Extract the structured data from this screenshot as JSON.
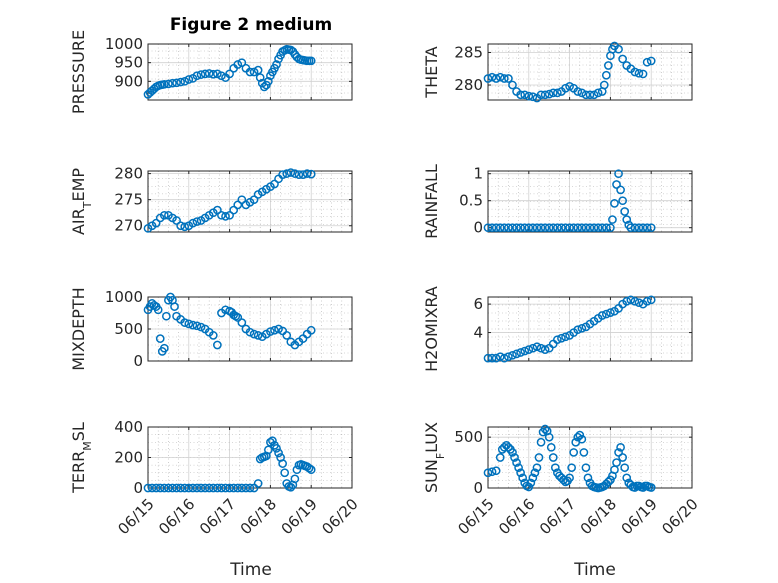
{
  "figure": {
    "title": "Figure 2 medium",
    "xlabel": "Time",
    "marker_color": "#0072BD"
  },
  "chart_data": [
    {
      "type": "scatter",
      "ylabel": "PRESSURE",
      "xlim": [
        "06/15",
        "06/19"
      ],
      "ylim": [
        850,
        1000
      ],
      "yticks": [
        900,
        950,
        1000
      ],
      "xtick_labels": [
        "06/15",
        "06/16",
        "06/17",
        "06/18",
        "06/19",
        "06/20"
      ],
      "grid": true,
      "legend": "none",
      "x": [
        0.0,
        0.05,
        0.1,
        0.15,
        0.2,
        0.25,
        0.3,
        0.35,
        0.4,
        0.5,
        0.6,
        0.7,
        0.8,
        0.9,
        1.0,
        1.1,
        1.2,
        1.3,
        1.4,
        1.5,
        1.6,
        1.7,
        1.8,
        1.9,
        2.0,
        2.1,
        2.2,
        2.3,
        2.4,
        2.5,
        2.6,
        2.7,
        2.75,
        2.8,
        2.85,
        2.9,
        2.95,
        3.0,
        3.05,
        3.1,
        3.15,
        3.2,
        3.25,
        3.3,
        3.35,
        3.4,
        3.45,
        3.5,
        3.55,
        3.6,
        3.65,
        3.7,
        3.75,
        3.8,
        3.85,
        3.9,
        3.95,
        4.0
      ],
      "y": [
        865,
        870,
        875,
        880,
        885,
        888,
        890,
        891,
        892,
        893,
        895,
        896,
        898,
        900,
        905,
        908,
        915,
        918,
        920,
        921,
        919,
        920,
        915,
        910,
        920,
        935,
        945,
        950,
        935,
        925,
        925,
        930,
        910,
        895,
        885,
        890,
        900,
        915,
        925,
        935,
        945,
        960,
        970,
        980,
        983,
        986,
        985,
        984,
        980,
        972,
        965,
        960,
        958,
        957,
        956,
        955,
        955,
        955
      ]
    },
    {
      "type": "scatter",
      "ylabel": "THETA",
      "xlim": [
        "06/15",
        "06/19"
      ],
      "ylim": [
        277.7,
        286.3
      ],
      "yticks": [
        280,
        285
      ],
      "xtick_labels": [
        "06/15",
        "06/16",
        "06/17",
        "06/18",
        "06/19",
        "06/20"
      ],
      "grid": true,
      "legend": "none",
      "x": [
        0.0,
        0.1,
        0.2,
        0.3,
        0.4,
        0.5,
        0.6,
        0.7,
        0.8,
        0.9,
        1.0,
        1.1,
        1.2,
        1.3,
        1.4,
        1.5,
        1.6,
        1.7,
        1.8,
        1.9,
        2.0,
        2.1,
        2.2,
        2.3,
        2.4,
        2.5,
        2.6,
        2.7,
        2.8,
        2.85,
        2.9,
        2.95,
        3.0,
        3.05,
        3.1,
        3.2,
        3.3,
        3.4,
        3.5,
        3.6,
        3.7,
        3.8,
        3.9,
        4.0
      ],
      "y": [
        281,
        281.2,
        281,
        281.2,
        281,
        281,
        280,
        279,
        278.5,
        278.5,
        278.3,
        278.2,
        278,
        278.5,
        278.5,
        278.6,
        278.8,
        278.8,
        279,
        279.5,
        279.8,
        279.5,
        279,
        278.8,
        278.5,
        278.5,
        278.5,
        278.8,
        279,
        280,
        281.5,
        283,
        284.5,
        285.5,
        286,
        285.5,
        284,
        283,
        282.5,
        282,
        281.8,
        281.7,
        283.5,
        283.7
      ]
    },
    {
      "type": "scatter",
      "ylabel": "AIR_TEMP",
      "xlim": [
        "06/15",
        "06/19"
      ],
      "ylim": [
        268.8,
        280.5
      ],
      "yticks": [
        270,
        275,
        280
      ],
      "xtick_labels": [
        "06/15",
        "06/16",
        "06/17",
        "06/18",
        "06/19",
        "06/20"
      ],
      "grid": true,
      "legend": "none",
      "x": [
        0.0,
        0.1,
        0.2,
        0.3,
        0.4,
        0.5,
        0.6,
        0.7,
        0.8,
        0.9,
        1.0,
        1.1,
        1.2,
        1.3,
        1.4,
        1.5,
        1.6,
        1.7,
        1.8,
        1.9,
        2.0,
        2.1,
        2.2,
        2.3,
        2.4,
        2.5,
        2.6,
        2.7,
        2.8,
        2.9,
        3.0,
        3.1,
        3.2,
        3.3,
        3.4,
        3.5,
        3.6,
        3.7,
        3.8,
        3.9,
        4.0
      ],
      "y": [
        269.5,
        270,
        270.5,
        271.5,
        272,
        272,
        271.5,
        271,
        270,
        269.8,
        270,
        270.5,
        270.8,
        271,
        271.5,
        272,
        272.5,
        273,
        272,
        271.8,
        272,
        273,
        274,
        275,
        274,
        274.5,
        275,
        276,
        276.5,
        277,
        277.5,
        278,
        279,
        279.8,
        280,
        280.2,
        280,
        279.8,
        279.8,
        280,
        279.9
      ]
    },
    {
      "type": "scatter",
      "ylabel": "RAINFALL",
      "xlim": [
        "06/15",
        "06/19"
      ],
      "ylim": [
        -0.08,
        1.05
      ],
      "yticks": [
        0,
        0.5,
        1
      ],
      "xtick_labels": [
        "06/15",
        "06/16",
        "06/17",
        "06/18",
        "06/19",
        "06/20"
      ],
      "grid": true,
      "legend": "none",
      "x": [
        0.0,
        0.1,
        0.2,
        0.3,
        0.4,
        0.5,
        0.6,
        0.7,
        0.8,
        0.9,
        1.0,
        1.1,
        1.2,
        1.3,
        1.4,
        1.5,
        1.6,
        1.7,
        1.8,
        1.9,
        2.0,
        2.1,
        2.2,
        2.3,
        2.4,
        2.5,
        2.6,
        2.7,
        2.8,
        2.9,
        3.0,
        3.05,
        3.1,
        3.15,
        3.2,
        3.25,
        3.3,
        3.35,
        3.4,
        3.45,
        3.5,
        3.6,
        3.7,
        3.8,
        3.9,
        4.0
      ],
      "y": [
        0,
        0,
        0,
        0,
        0,
        0,
        0,
        0,
        0,
        0,
        0,
        0,
        0,
        0,
        0,
        0,
        0,
        0,
        0,
        0,
        0,
        0,
        0,
        0,
        0,
        0,
        0,
        0,
        0,
        0,
        0,
        0.15,
        0.45,
        0.8,
        1.0,
        0.7,
        0.5,
        0.3,
        0.15,
        0.05,
        0,
        0,
        0,
        0,
        0,
        0
      ]
    },
    {
      "type": "scatter",
      "ylabel": "MIXDEPTH",
      "xlim": [
        "06/15",
        "06/19"
      ],
      "ylim": [
        0,
        1000
      ],
      "yticks": [
        0,
        500,
        1000
      ],
      "xtick_labels": [
        "06/15",
        "06/16",
        "06/17",
        "06/18",
        "06/19",
        "06/20"
      ],
      "grid": true,
      "legend": "none",
      "x": [
        0.0,
        0.05,
        0.1,
        0.15,
        0.2,
        0.25,
        0.3,
        0.35,
        0.4,
        0.45,
        0.5,
        0.55,
        0.6,
        0.65,
        0.7,
        0.8,
        0.9,
        1.0,
        1.1,
        1.2,
        1.3,
        1.4,
        1.5,
        1.6,
        1.7,
        1.8,
        1.9,
        2.0,
        2.05,
        2.1,
        2.15,
        2.2,
        2.3,
        2.4,
        2.5,
        2.6,
        2.7,
        2.8,
        2.9,
        3.0,
        3.1,
        3.2,
        3.3,
        3.4,
        3.5,
        3.6,
        3.7,
        3.8,
        3.9,
        4.0
      ],
      "y": [
        800,
        850,
        900,
        870,
        850,
        800,
        350,
        150,
        200,
        700,
        950,
        1000,
        950,
        850,
        700,
        650,
        600,
        580,
        560,
        550,
        530,
        500,
        450,
        400,
        250,
        750,
        800,
        780,
        760,
        720,
        700,
        680,
        600,
        500,
        450,
        420,
        400,
        380,
        420,
        460,
        480,
        500,
        470,
        400,
        300,
        250,
        300,
        350,
        420,
        480
      ]
    },
    {
      "type": "scatter",
      "ylabel": "H2OMIXRA",
      "xlim": [
        "06/15",
        "06/19"
      ],
      "ylim": [
        2,
        6.5
      ],
      "yticks": [
        4,
        6
      ],
      "xtick_labels": [
        "06/15",
        "06/16",
        "06/17",
        "06/18",
        "06/19",
        "06/20"
      ],
      "grid": true,
      "legend": "none",
      "x": [
        0.0,
        0.1,
        0.2,
        0.3,
        0.4,
        0.5,
        0.6,
        0.7,
        0.8,
        0.9,
        1.0,
        1.1,
        1.2,
        1.3,
        1.4,
        1.5,
        1.6,
        1.7,
        1.8,
        1.9,
        2.0,
        2.1,
        2.2,
        2.3,
        2.4,
        2.5,
        2.6,
        2.7,
        2.8,
        2.9,
        3.0,
        3.1,
        3.2,
        3.3,
        3.4,
        3.5,
        3.6,
        3.7,
        3.8,
        3.9,
        4.0
      ],
      "y": [
        2.2,
        2.2,
        2.2,
        2.3,
        2.2,
        2.3,
        2.4,
        2.5,
        2.6,
        2.7,
        2.8,
        2.9,
        3.0,
        2.9,
        2.8,
        2.9,
        3.2,
        3.5,
        3.6,
        3.7,
        3.8,
        4.0,
        4.2,
        4.3,
        4.4,
        4.6,
        4.8,
        5.0,
        5.2,
        5.3,
        5.4,
        5.5,
        5.7,
        6.0,
        6.2,
        6.3,
        6.2,
        6.1,
        6.0,
        6.2,
        6.3
      ]
    },
    {
      "type": "scatter",
      "ylabel": "TERR_MSL",
      "xlim": [
        "06/15",
        "06/19"
      ],
      "ylim": [
        0,
        400
      ],
      "yticks": [
        0,
        200,
        400
      ],
      "xtick_labels": [
        "06/15",
        "06/16",
        "06/17",
        "06/18",
        "06/19",
        "06/20"
      ],
      "grid": true,
      "legend": "none",
      "x": [
        0.0,
        0.1,
        0.2,
        0.3,
        0.4,
        0.5,
        0.6,
        0.7,
        0.8,
        0.9,
        1.0,
        1.1,
        1.2,
        1.3,
        1.4,
        1.5,
        1.6,
        1.7,
        1.8,
        1.9,
        2.0,
        2.1,
        2.2,
        2.3,
        2.4,
        2.5,
        2.6,
        2.7,
        2.75,
        2.8,
        2.85,
        2.9,
        2.95,
        3.0,
        3.05,
        3.1,
        3.15,
        3.2,
        3.25,
        3.3,
        3.35,
        3.4,
        3.45,
        3.5,
        3.55,
        3.6,
        3.65,
        3.7,
        3.75,
        3.8,
        3.85,
        3.9,
        3.95,
        4.0
      ],
      "y": [
        0,
        0,
        0,
        0,
        0,
        0,
        0,
        0,
        0,
        0,
        0,
        0,
        0,
        0,
        0,
        0,
        0,
        0,
        0,
        0,
        0,
        0,
        0,
        0,
        0,
        0,
        0,
        30,
        190,
        200,
        205,
        210,
        250,
        300,
        310,
        280,
        260,
        230,
        200,
        160,
        100,
        30,
        10,
        5,
        20,
        60,
        120,
        150,
        155,
        150,
        145,
        140,
        130,
        120
      ]
    },
    {
      "type": "scatter",
      "ylabel": "SUN_FLUX",
      "xlim": [
        "06/15",
        "06/19"
      ],
      "ylim": [
        0,
        600
      ],
      "yticks": [
        0,
        500
      ],
      "xtick_labels": [
        "06/15",
        "06/16",
        "06/17",
        "06/18",
        "06/19",
        "06/20"
      ],
      "grid": true,
      "legend": "none",
      "x": [
        0.0,
        0.1,
        0.2,
        0.3,
        0.35,
        0.4,
        0.45,
        0.5,
        0.55,
        0.6,
        0.65,
        0.7,
        0.75,
        0.8,
        0.85,
        0.9,
        0.95,
        1.0,
        1.05,
        1.1,
        1.15,
        1.2,
        1.25,
        1.3,
        1.35,
        1.4,
        1.45,
        1.5,
        1.55,
        1.6,
        1.65,
        1.7,
        1.75,
        1.8,
        1.85,
        1.9,
        1.95,
        2.0,
        2.05,
        2.1,
        2.15,
        2.2,
        2.25,
        2.3,
        2.35,
        2.4,
        2.45,
        2.5,
        2.55,
        2.6,
        2.65,
        2.7,
        2.75,
        2.8,
        2.85,
        2.9,
        2.95,
        3.0,
        3.05,
        3.1,
        3.15,
        3.2,
        3.25,
        3.3,
        3.35,
        3.4,
        3.45,
        3.5,
        3.55,
        3.6,
        3.65,
        3.7,
        3.75,
        3.8,
        3.85,
        3.9,
        3.95,
        4.0
      ],
      "y": [
        150,
        160,
        170,
        300,
        380,
        400,
        420,
        400,
        380,
        350,
        300,
        250,
        200,
        150,
        100,
        50,
        20,
        10,
        50,
        100,
        150,
        200,
        300,
        450,
        550,
        580,
        560,
        500,
        400,
        300,
        200,
        150,
        120,
        100,
        80,
        60,
        70,
        100,
        200,
        350,
        450,
        500,
        520,
        480,
        350,
        200,
        100,
        50,
        20,
        10,
        5,
        0,
        5,
        10,
        20,
        40,
        60,
        80,
        120,
        180,
        250,
        350,
        400,
        300,
        200,
        100,
        50,
        30,
        10,
        5,
        20,
        20,
        10,
        5,
        20,
        20,
        10,
        5
      ]
    }
  ]
}
